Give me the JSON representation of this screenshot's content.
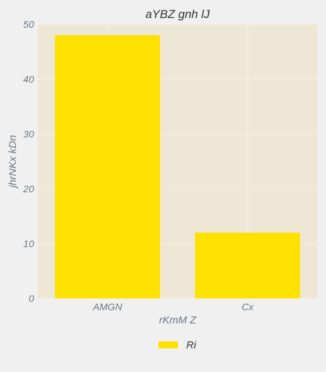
{
  "chart_data": {
    "type": "bar",
    "title": "aYBZ gnh lJ",
    "xlabel": "rKmM Z",
    "ylabel": "jhrNKx  kDn",
    "categories": [
      "AMGN",
      "Cx"
    ],
    "series": [
      {
        "name": "Ri",
        "values": [
          48,
          12
        ],
        "color": "#ffe100"
      }
    ],
    "ylim": [
      0,
      50
    ],
    "yticks": [
      0,
      10,
      20,
      30,
      40,
      50
    ],
    "grid": true,
    "legend_position": "bottom-center",
    "plot_background": "#efe7d5",
    "grid_color": "#f7f2e6"
  }
}
